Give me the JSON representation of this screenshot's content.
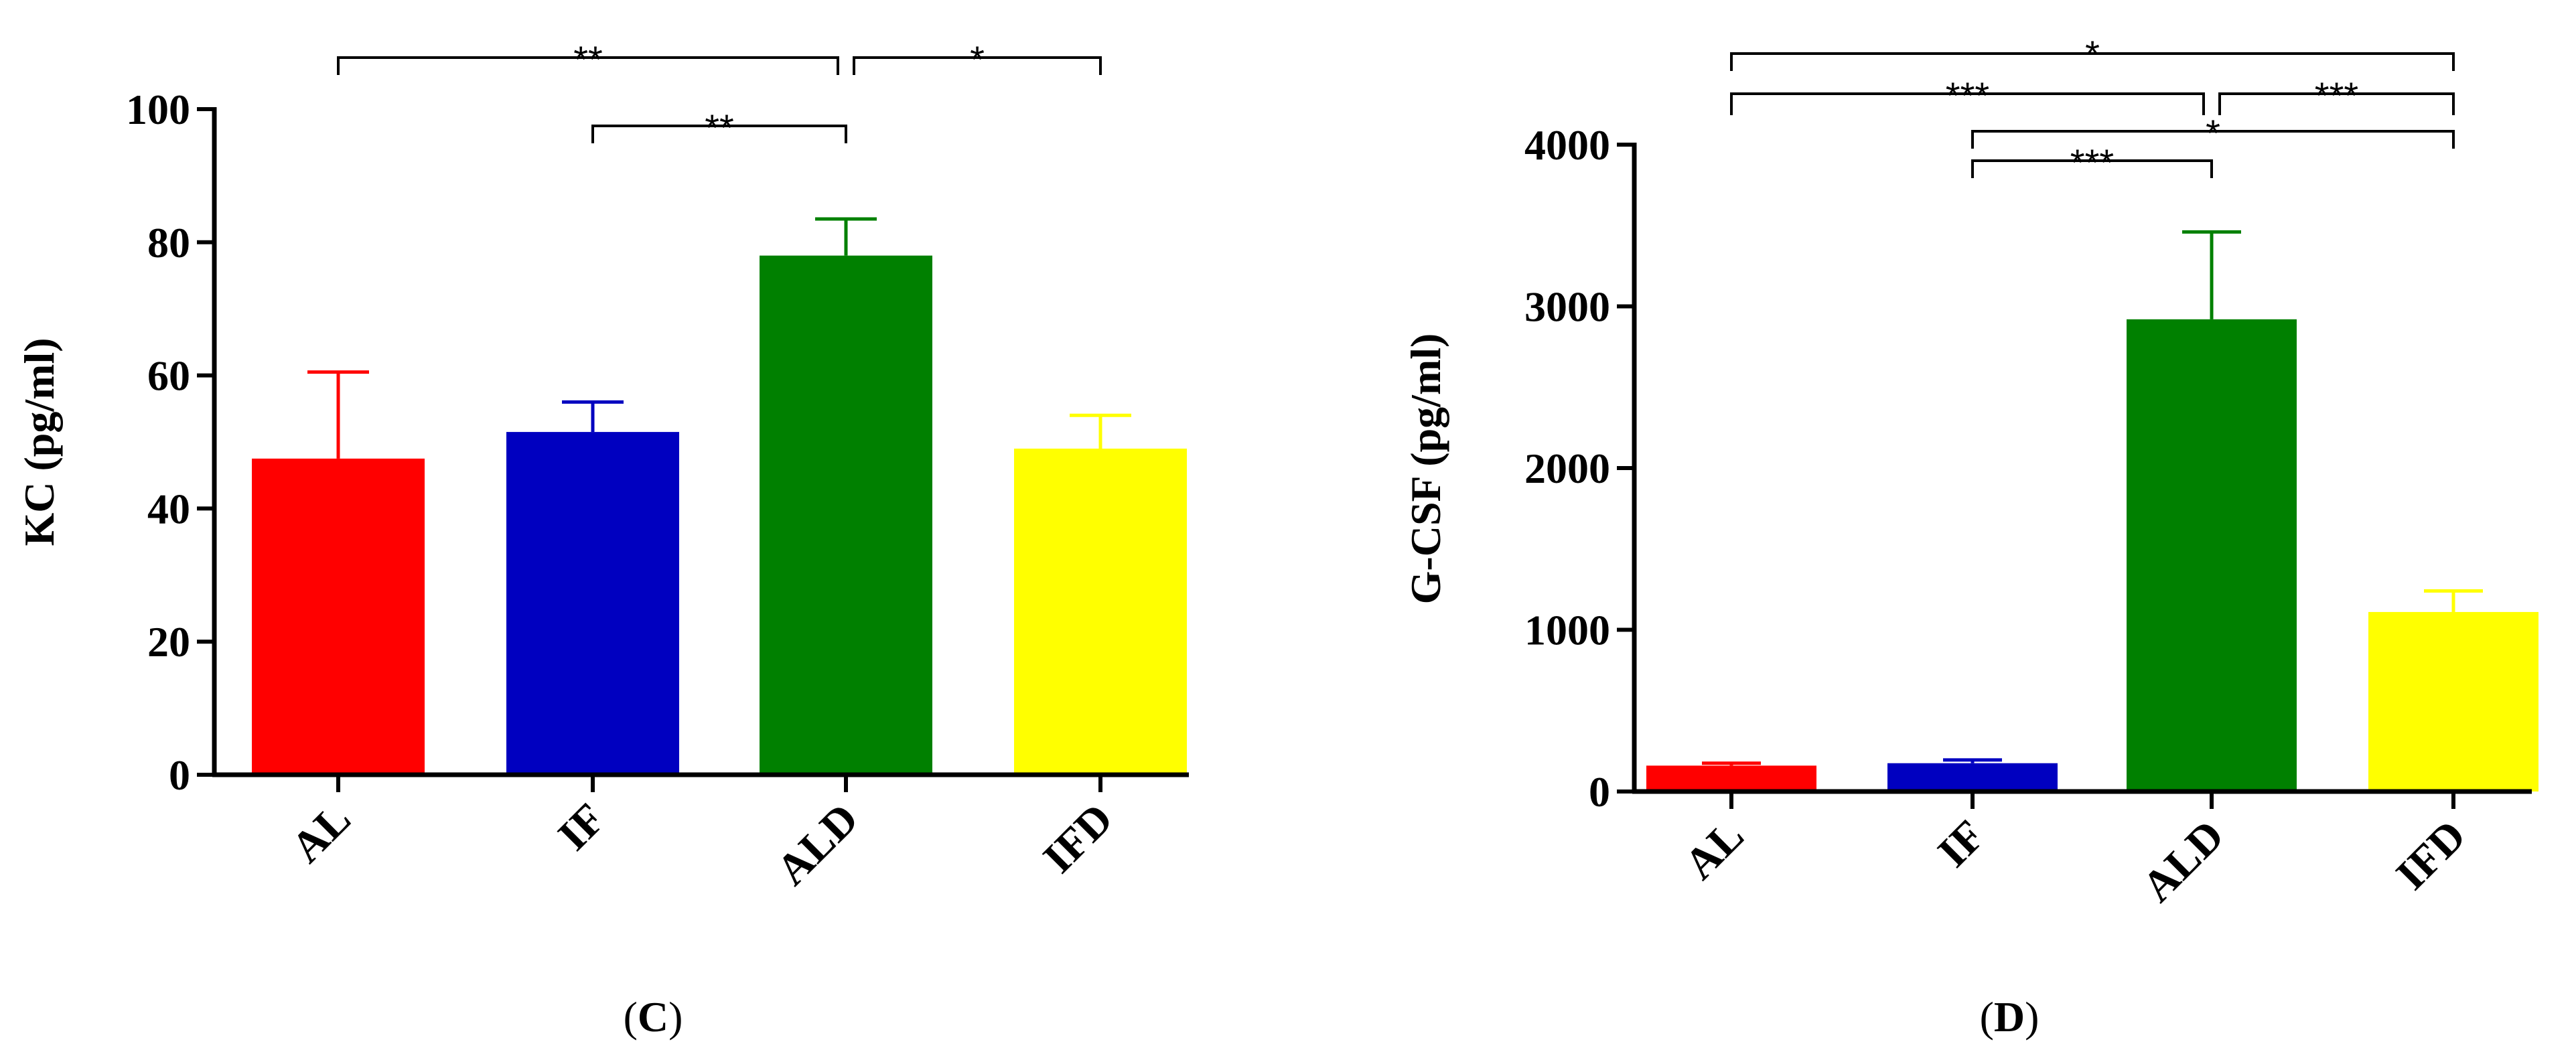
{
  "chart_data": [
    {
      "type": "bar",
      "panel_label": "C",
      "ylabel": "KC (pg/ml)",
      "ylim": [
        0,
        100
      ],
      "yticks": [
        0,
        20,
        40,
        60,
        80,
        100
      ],
      "categories": [
        "AL",
        "IF",
        "ALD",
        "IFD"
      ],
      "values": [
        47.5,
        51.5,
        78,
        49
      ],
      "errors": [
        13,
        4.5,
        5.5,
        5
      ],
      "colors": [
        "#ff0000",
        "#0000c0",
        "#008000",
        "#ffff00"
      ],
      "significance": [
        {
          "from": 0,
          "to": 2,
          "label": "**"
        },
        {
          "from": 2,
          "to": 3,
          "label": "*"
        },
        {
          "from": 1,
          "to": 2,
          "label": "**"
        }
      ]
    },
    {
      "type": "bar",
      "panel_label": "D",
      "ylabel": "G-CSF (pg/ml)",
      "ylim": [
        0,
        4000
      ],
      "yticks": [
        0,
        1000,
        2000,
        3000,
        4000
      ],
      "categories": [
        "AL",
        "IF",
        "ALD",
        "IFD"
      ],
      "values": [
        160,
        175,
        2920,
        1110
      ],
      "errors": [
        15,
        20,
        540,
        130
      ],
      "colors": [
        "#ff0000",
        "#0000c0",
        "#008000",
        "#ffff00"
      ],
      "significance": [
        {
          "from": 0,
          "to": 3,
          "label": "*"
        },
        {
          "from": 0,
          "to": 2,
          "label": "***"
        },
        {
          "from": 2,
          "to": 3,
          "label": "***"
        },
        {
          "from": 1,
          "to": 3,
          "label": "*"
        },
        {
          "from": 1,
          "to": 2,
          "label": "***"
        }
      ]
    }
  ]
}
